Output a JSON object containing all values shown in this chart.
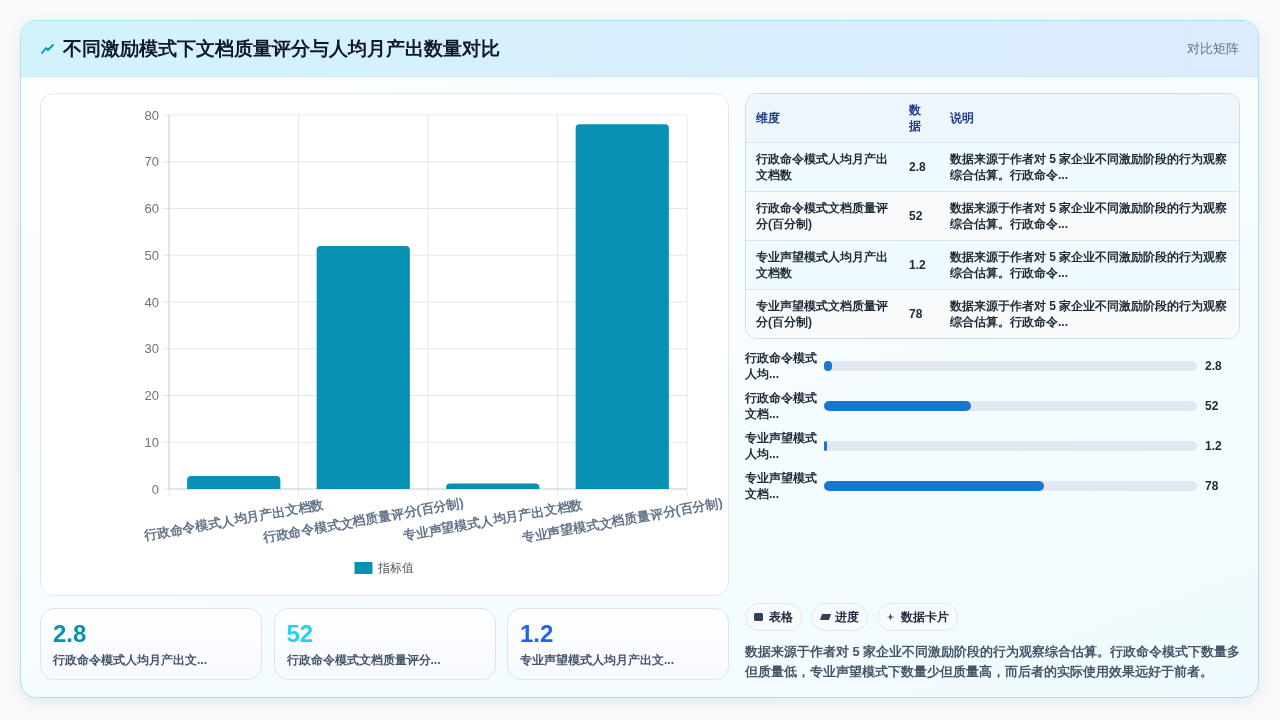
{
  "chart_data": [
    {
      "type": "other",
      "title": "不同激励模式下文档质量评分与人均月产出数量对比",
      "annotations": [
        "对比矩阵"
      ]
    },
    {
      "type": "bar",
      "categories": [
        "行政命令模式人均月产出文档数",
        "行政命令模式文档质量评分(百分制)",
        "专业声望模式人均月产出文档数",
        "专业声望模式文档质量评分(百分制)"
      ],
      "series": [
        {
          "name": "指标值",
          "color": "#0891b2",
          "values": [
            2.8,
            52,
            1.2,
            78
          ]
        }
      ],
      "ylim": [
        0,
        80
      ],
      "yticks": [
        0,
        10,
        20,
        30,
        40,
        50,
        60,
        70,
        80
      ],
      "grid": true,
      "legend": "bottom"
    },
    {
      "type": "other",
      "categories": [
        "行政命令模式人均月产出文档数",
        "行政命令模式文档质量评分(百分制)",
        "专业声望模式人均月产出文档数",
        "专业声望模式文档质量评分(百分制)"
      ],
      "values": [
        2.8,
        52,
        1.2,
        78
      ],
      "data_labels": true,
      "annotations": [
        "维度",
        "数据",
        "说明",
        "数据来源于作者对 5 家企业不同激励阶段的行为观察综合估算。行政命令...",
        "数据来源于作者对 5 家企业不同激励阶段的行为观察综合估算。行政命令...",
        "数据来源于作者对 5 家企业不同激励阶段的行为观察综合估算。行政命令...",
        "数据来源于作者对 5 家企业不同激励阶段的行为观察综合估算。行政命令..."
      ]
    },
    {
      "type": "bar",
      "orientation": "horizontal",
      "categories": [
        "行政命令模式人均...",
        "行政命令模式文档...",
        "专业声望模式人均...",
        "专业声望模式文档..."
      ],
      "values": [
        2.8,
        52,
        1.2,
        78
      ],
      "color": "#1877cc",
      "xlim": [
        0,
        132
      ],
      "data_labels": true,
      "tick_labels": "y"
    },
    {
      "type": "other",
      "categories": [
        "行政命令模式人均月产出文...",
        "行政命令模式文档质量评分...",
        "专业声望模式人均月产出文..."
      ],
      "values": [
        2.8,
        52,
        1.2
      ],
      "colors": [
        "#0891b2",
        "#22d3ee",
        "#2563eb"
      ],
      "data_labels": true
    },
    {
      "type": "other",
      "annotations": [
        "表格",
        "进度",
        "数据卡片",
        "数据来源于作者对 5 家企业不同激励阶段的行为观察综合估算。行政命令模式下数量多但质量低，专业声望模式下数量少但质量高，而后者的实际使用效果远好于前者。"
      ]
    }
  ]
}
